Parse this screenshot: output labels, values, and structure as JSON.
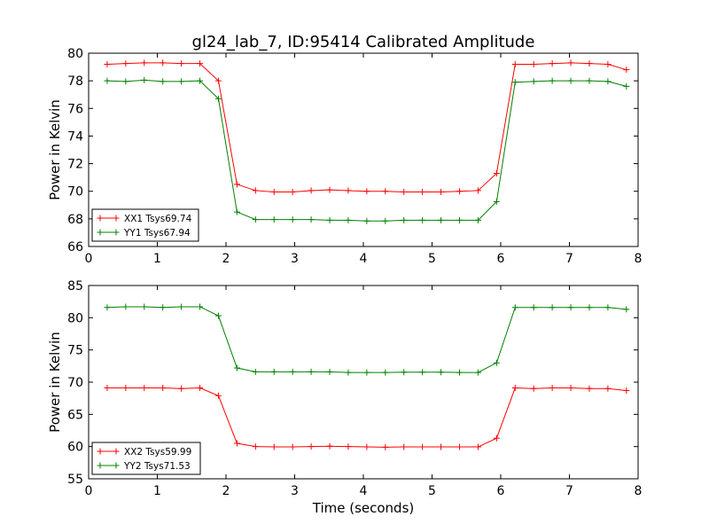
{
  "figure": {
    "title": "gl24_lab_7, ID:95414 Calibrated Amplitude",
    "xlabel": "Time (seconds)"
  },
  "chart_data": [
    {
      "type": "line",
      "title": "gl24_lab_7, ID:95414 Calibrated Amplitude",
      "xlabel": "",
      "ylabel": "Power in Kelvin",
      "xlim": [
        0,
        8
      ],
      "ylim": [
        66,
        80
      ],
      "xticks": [
        0,
        1,
        2,
        3,
        4,
        5,
        6,
        7,
        8
      ],
      "yticks": [
        66,
        68,
        70,
        72,
        74,
        76,
        78,
        80
      ],
      "grid": false,
      "legend_position": "lower-left",
      "x": [
        0.27,
        0.54,
        0.81,
        1.08,
        1.35,
        1.62,
        1.89,
        2.16,
        2.43,
        2.7,
        2.97,
        3.24,
        3.51,
        3.78,
        4.05,
        4.32,
        4.59,
        4.86,
        5.13,
        5.4,
        5.67,
        5.94,
        6.21,
        6.48,
        6.75,
        7.02,
        7.29,
        7.56,
        7.83
      ],
      "series": [
        {
          "name": "XX1 Tsys69.74",
          "color": "#ff0000",
          "values": [
            79.2,
            79.25,
            79.3,
            79.3,
            79.25,
            79.25,
            78.0,
            70.5,
            70.05,
            69.95,
            69.95,
            70.05,
            70.1,
            70.05,
            70.0,
            70.0,
            69.95,
            69.95,
            69.95,
            70.0,
            70.05,
            71.3,
            79.2,
            79.2,
            79.25,
            79.3,
            79.25,
            79.2,
            78.8
          ]
        },
        {
          "name": "YY1 Tsys67.94",
          "color": "#008000",
          "values": [
            78.0,
            77.95,
            78.05,
            77.95,
            77.95,
            78.0,
            76.7,
            68.5,
            67.95,
            67.95,
            67.95,
            67.95,
            67.9,
            67.9,
            67.85,
            67.85,
            67.9,
            67.9,
            67.9,
            67.9,
            67.9,
            69.25,
            77.9,
            77.95,
            78.0,
            78.0,
            78.0,
            77.95,
            77.6
          ]
        }
      ]
    },
    {
      "type": "line",
      "title": "",
      "xlabel": "Time (seconds)",
      "ylabel": "Power in Kelvin",
      "xlim": [
        0,
        8
      ],
      "ylim": [
        55,
        85
      ],
      "xticks": [
        0,
        1,
        2,
        3,
        4,
        5,
        6,
        7,
        8
      ],
      "yticks": [
        55,
        60,
        65,
        70,
        75,
        80,
        85
      ],
      "grid": false,
      "legend_position": "lower-left",
      "x": [
        0.27,
        0.54,
        0.81,
        1.08,
        1.35,
        1.62,
        1.89,
        2.16,
        2.43,
        2.7,
        2.97,
        3.24,
        3.51,
        3.78,
        4.05,
        4.32,
        4.59,
        4.86,
        5.13,
        5.4,
        5.67,
        5.94,
        6.21,
        6.48,
        6.75,
        7.02,
        7.29,
        7.56,
        7.83
      ],
      "series": [
        {
          "name": "XX2 Tsys59.99",
          "color": "#ff0000",
          "values": [
            69.1,
            69.1,
            69.1,
            69.1,
            69.0,
            69.1,
            67.9,
            60.5,
            60.0,
            59.95,
            59.95,
            60.0,
            60.05,
            60.0,
            59.95,
            59.9,
            59.95,
            59.95,
            59.95,
            59.95,
            59.95,
            61.3,
            69.1,
            69.0,
            69.1,
            69.1,
            69.0,
            69.0,
            68.7
          ]
        },
        {
          "name": "YY2 Tsys71.53",
          "color": "#008000",
          "values": [
            81.6,
            81.7,
            81.7,
            81.6,
            81.7,
            81.7,
            80.3,
            72.2,
            71.6,
            71.6,
            71.6,
            71.6,
            71.6,
            71.5,
            71.5,
            71.5,
            71.55,
            71.55,
            71.55,
            71.5,
            71.5,
            73.0,
            81.6,
            81.6,
            81.6,
            81.6,
            81.6,
            81.6,
            81.3
          ]
        }
      ]
    }
  ]
}
